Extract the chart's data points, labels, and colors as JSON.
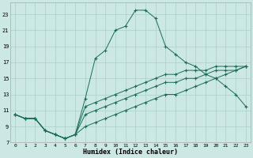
{
  "title": "",
  "xlabel": "Humidex (Indice chaleur)",
  "background_color": "#cce8e4",
  "grid_color": "#aacfcc",
  "line_color": "#1a6b5a",
  "xlim": [
    -0.5,
    23.5
  ],
  "ylim": [
    7,
    24.5
  ],
  "xticks": [
    0,
    1,
    2,
    3,
    4,
    5,
    6,
    7,
    8,
    9,
    10,
    11,
    12,
    13,
    14,
    15,
    16,
    17,
    18,
    19,
    20,
    21,
    22,
    23
  ],
  "yticks": [
    7,
    9,
    11,
    13,
    15,
    17,
    19,
    21,
    23
  ],
  "curve_x": [
    0,
    1,
    2,
    3,
    4,
    5,
    6,
    7,
    8,
    9,
    10,
    11,
    12,
    13,
    14,
    15,
    16,
    17,
    18,
    19,
    20,
    21,
    22,
    23
  ],
  "curve_y": [
    10.5,
    10.0,
    10.0,
    8.5,
    8.0,
    7.5,
    8.0,
    12.5,
    17.5,
    18.5,
    21.0,
    21.5,
    23.5,
    23.5,
    22.5,
    19.0,
    18.0,
    17.0,
    16.5,
    15.5,
    15.0,
    14.0,
    13.0,
    11.5
  ],
  "line_upper_x": [
    0,
    1,
    2,
    3,
    4,
    5,
    6,
    7,
    8,
    9,
    10,
    11,
    12,
    13,
    14,
    15,
    16,
    17,
    18,
    19,
    20,
    21,
    22,
    23
  ],
  "line_upper_y": [
    10.5,
    10.0,
    10.0,
    8.5,
    8.0,
    7.5,
    8.0,
    11.5,
    12.0,
    12.5,
    13.0,
    13.5,
    14.0,
    14.5,
    15.0,
    15.5,
    15.5,
    16.0,
    16.0,
    16.0,
    16.5,
    16.5,
    16.5,
    16.5
  ],
  "line_mid_x": [
    0,
    1,
    2,
    3,
    4,
    5,
    6,
    7,
    8,
    9,
    10,
    11,
    12,
    13,
    14,
    15,
    16,
    17,
    18,
    19,
    20,
    21,
    22,
    23
  ],
  "line_mid_y": [
    10.5,
    10.0,
    10.0,
    8.5,
    8.0,
    7.5,
    8.0,
    10.5,
    11.0,
    11.5,
    12.0,
    12.5,
    13.0,
    13.5,
    14.0,
    14.5,
    14.5,
    15.0,
    15.0,
    15.5,
    16.0,
    16.0,
    16.0,
    16.5
  ],
  "line_low_x": [
    0,
    1,
    2,
    3,
    4,
    5,
    6,
    7,
    8,
    9,
    10,
    11,
    12,
    13,
    14,
    15,
    16,
    17,
    18,
    19,
    20,
    21,
    22,
    23
  ],
  "line_low_y": [
    10.5,
    10.0,
    10.0,
    8.5,
    8.0,
    7.5,
    8.0,
    9.0,
    9.5,
    10.0,
    10.5,
    11.0,
    11.5,
    12.0,
    12.5,
    13.0,
    13.0,
    13.5,
    14.0,
    14.5,
    15.0,
    15.5,
    16.0,
    16.5
  ]
}
